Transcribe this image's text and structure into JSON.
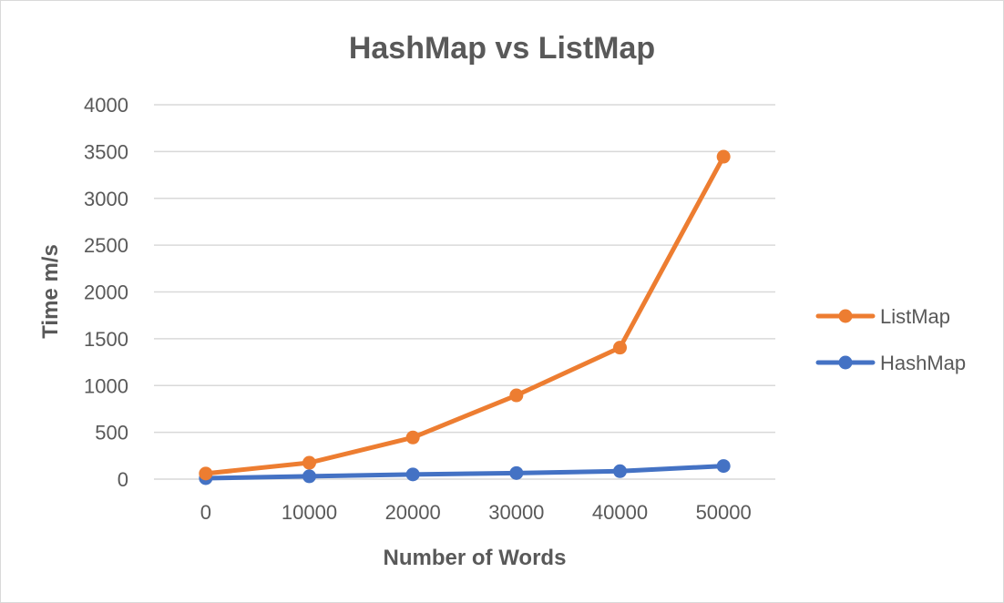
{
  "chart_data": {
    "type": "line",
    "title": "HashMap vs ListMap",
    "xlabel": "Number of Words",
    "ylabel": "Time m/s",
    "categories": [
      "0",
      "10000",
      "20000",
      "30000",
      "40000",
      "50000"
    ],
    "yticks": [
      "0",
      "500",
      "1000",
      "1500",
      "2000",
      "2500",
      "3000",
      "3500",
      "4000"
    ],
    "ylim": [
      0,
      4000
    ],
    "grid": true,
    "legend_position": "right",
    "series": [
      {
        "name": "ListMap",
        "color": "#ed7d31",
        "values": [
          60,
          175,
          445,
          895,
          1405,
          3445
        ]
      },
      {
        "name": "HashMap",
        "color": "#4472c4",
        "values": [
          10,
          30,
          50,
          65,
          85,
          140
        ]
      }
    ]
  }
}
